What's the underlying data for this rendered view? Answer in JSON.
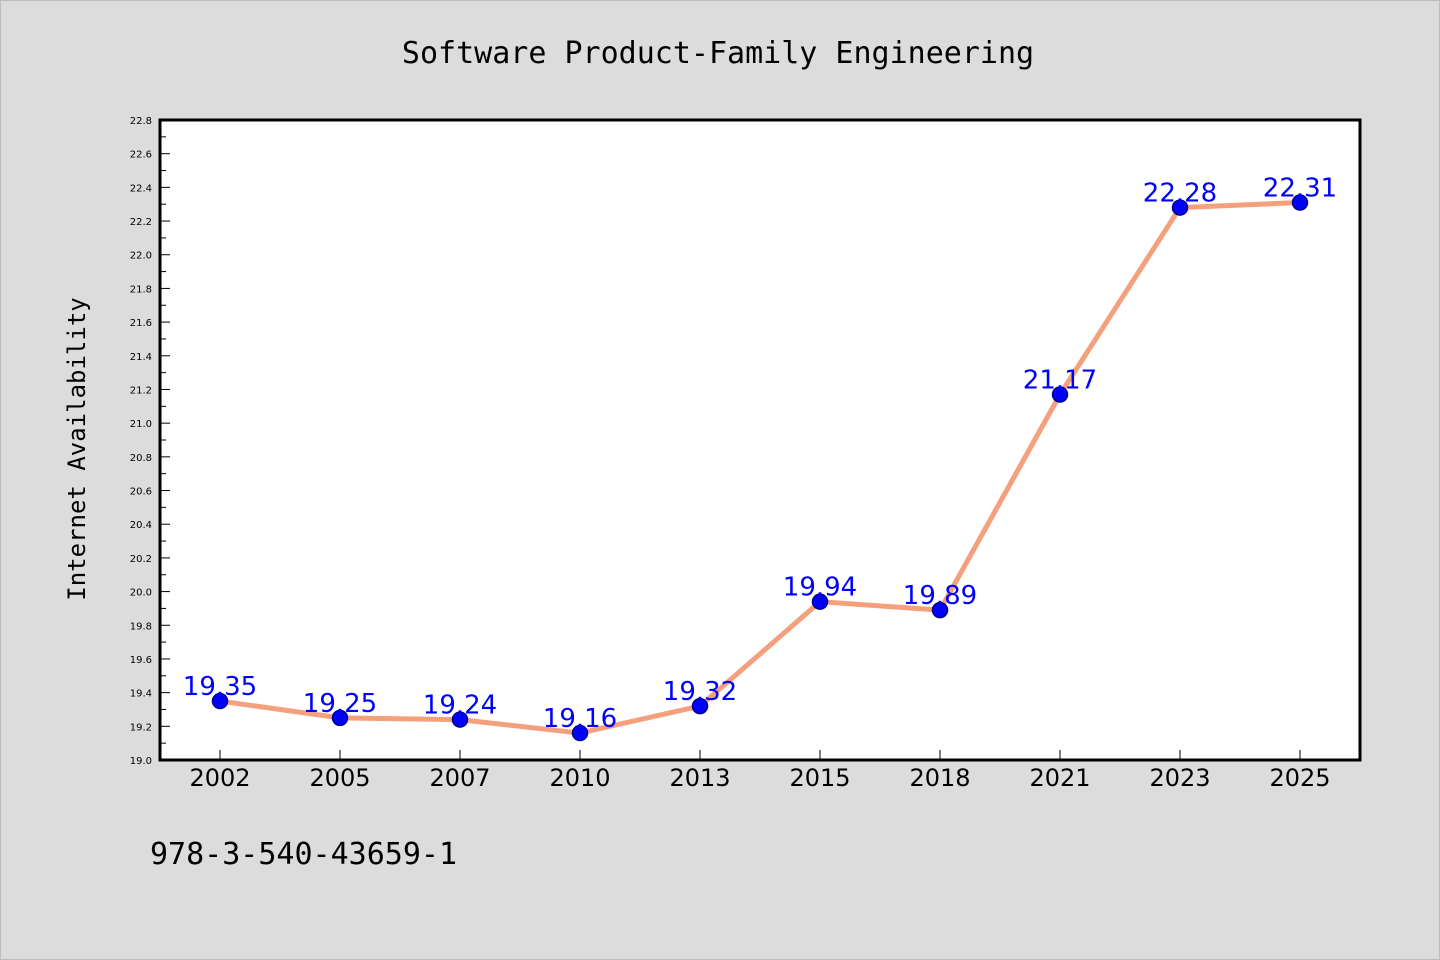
{
  "chart_data": {
    "type": "line",
    "title": "Software Product-Family Engineering",
    "xlabel": "",
    "ylabel": "Internet Availability",
    "categories": [
      "2002",
      "2005",
      "2007",
      "2010",
      "2013",
      "2015",
      "2018",
      "2021",
      "2023",
      "2025"
    ],
    "series": [
      {
        "values": [
          19.35,
          19.25,
          19.24,
          19.16,
          19.32,
          19.94,
          19.89,
          21.17,
          22.28,
          22.31
        ]
      }
    ],
    "data_labels": [
      "19.35",
      "19.25",
      "19.24",
      "19.16",
      "19.32",
      "19.94",
      "19.89",
      "21.17",
      "22.28",
      "22.31"
    ],
    "ylim": [
      19.0,
      22.8
    ],
    "yticks": [
      "19.0",
      "19.2",
      "19.4",
      "19.6",
      "19.8",
      "20.0",
      "20.2",
      "20.4",
      "20.6",
      "20.8",
      "21.0",
      "21.2",
      "21.4",
      "21.6",
      "21.8",
      "22.0",
      "22.2",
      "22.4",
      "22.6",
      "22.8"
    ],
    "grid": false,
    "legend": "none",
    "colors": {
      "line": "#f4a07c",
      "marker": "#0000ff",
      "marker_edge": "#00008b",
      "data_label": "#0000ff",
      "plot_background": "#ffffff",
      "figure_background": "#dcdcdc"
    }
  },
  "footer_text": "978-3-540-43659-1"
}
